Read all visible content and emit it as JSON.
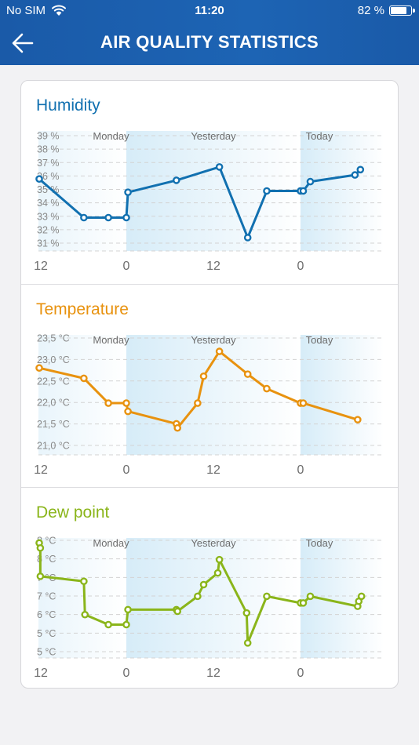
{
  "status_bar": {
    "carrier": "No SIM",
    "time": "11:20",
    "battery": "82 %",
    "battery_level": 0.82
  },
  "header": {
    "title": "AIR QUALITY STATISTICS",
    "back_icon": "arrow-left-icon"
  },
  "colors": {
    "header": "#1a5aa8",
    "humidity": "#1170b0",
    "temperature": "#e8920f",
    "dew_point": "#8ab51a",
    "shade": "#d6ecf8"
  },
  "x_axis_labels": [
    "12",
    "0",
    "12",
    "0"
  ],
  "day_labels": [
    "Monday",
    "Yesterday",
    "Today"
  ],
  "chart_data": [
    {
      "type": "line",
      "title": "Humidity",
      "y_tick_labels": [
        "39 %",
        "38 %",
        "37 %",
        "36 %",
        "35 %",
        "34 %",
        "33 %",
        "32 %",
        "31 %"
      ],
      "ylim": [
        30.5,
        39.5
      ],
      "xlim": [
        0,
        64
      ],
      "x_ticks": [
        0,
        16,
        32,
        48
      ],
      "x": [
        0,
        8.2,
        12.7,
        16,
        16.3,
        25.2,
        33.1,
        38.3,
        41.8,
        48,
        48.5,
        49.8,
        58,
        59
      ],
      "values": [
        35.9,
        33.0,
        33.0,
        33.0,
        34.9,
        35.8,
        36.8,
        31.5,
        35.0,
        35.0,
        35.0,
        35.7,
        36.2,
        36.6
      ]
    },
    {
      "type": "line",
      "title": "Temperature",
      "y_tick_labels": [
        "23,5 °C",
        "23,0 °C",
        "22,5 °C",
        "22,0 °C",
        "21,5 °C",
        "21,0 °C"
      ],
      "ylim": [
        20.8,
        23.7
      ],
      "xlim": [
        0,
        64
      ],
      "x_ticks": [
        0,
        16,
        32,
        48
      ],
      "x": [
        0,
        8.2,
        12.7,
        16,
        16.3,
        25.2,
        25.4,
        29.1,
        30.2,
        33.1,
        38.3,
        41.8,
        48,
        48.5,
        58.5
      ],
      "values": [
        22.9,
        22.65,
        22.05,
        22.05,
        21.85,
        21.55,
        21.45,
        22.05,
        22.7,
        23.3,
        22.75,
        22.4,
        22.05,
        22.05,
        21.65
      ]
    },
    {
      "type": "line",
      "title": "Dew point",
      "y_tick_labels": [
        "8 °C",
        "8 °C",
        "7 °C",
        "7 °C",
        "6 °C",
        "5 °C",
        "5 °C"
      ],
      "ylim": [
        4.55,
        8.15
      ],
      "xlim": [
        0,
        64
      ],
      "x_ticks": [
        0,
        16,
        32,
        48
      ],
      "x": [
        0,
        0.2,
        0.2,
        8.2,
        8.4,
        12.7,
        16,
        16.3,
        25.2,
        25.4,
        29.1,
        30.2,
        32.8,
        33.1,
        38.1,
        38.3,
        41.8,
        48,
        48.5,
        49.8,
        58.5,
        58.7,
        59.2
      ],
      "values": [
        8.0,
        7.85,
        7.0,
        6.85,
        5.85,
        5.55,
        5.55,
        6.0,
        6.0,
        5.95,
        6.4,
        6.75,
        7.1,
        7.5,
        5.9,
        5.0,
        6.4,
        6.2,
        6.2,
        6.4,
        6.1,
        6.25,
        6.4
      ]
    }
  ]
}
